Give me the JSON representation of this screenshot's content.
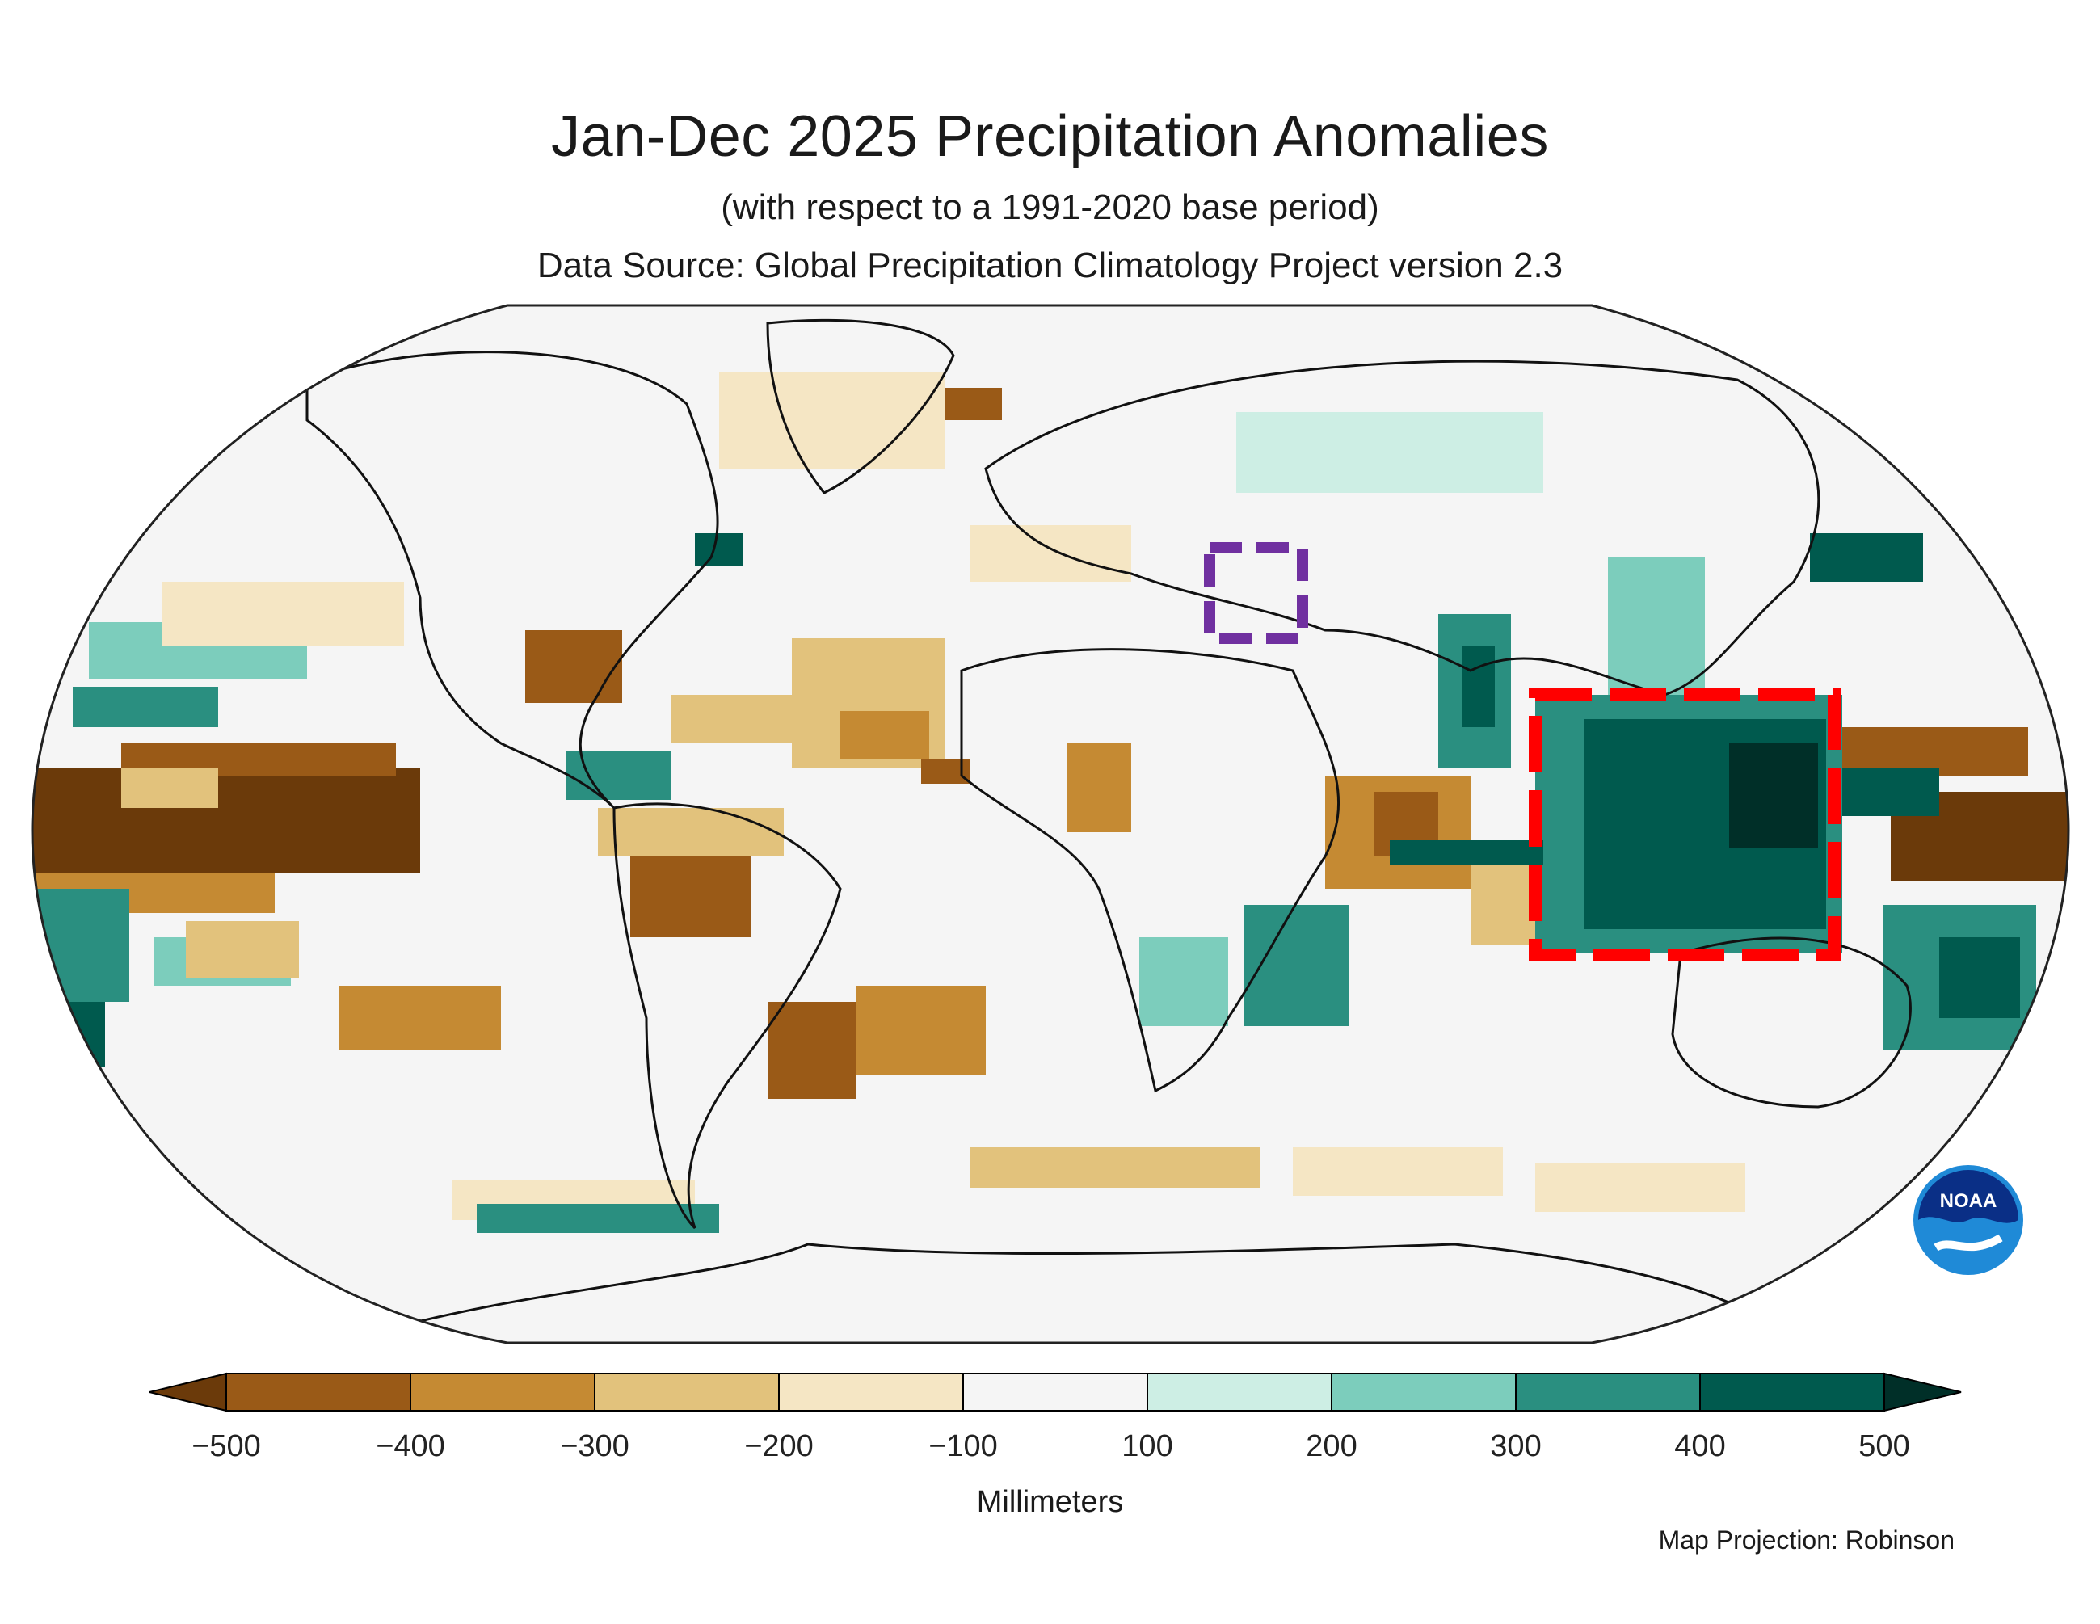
{
  "title": "Jan-Dec 2025 Precipitation Anomalies",
  "subtitle": "(with respect to a 1991-2020 base period)",
  "source": "Data Source: Global Precipitation Climatology Project version 2.3",
  "colorbar": {
    "unit": "Millimeters",
    "ticks": [
      "−500",
      "−400",
      "−300",
      "−200",
      "−100",
      "100",
      "200",
      "300",
      "400",
      "500"
    ],
    "colors": [
      "#6b3a0a",
      "#9a5a17",
      "#c58a33",
      "#e2c27c",
      "#f5e6c4",
      "#f5f5f5",
      "#cdeee4",
      "#7ccdbc",
      "#2a8f80",
      "#005a4e",
      "#002f28"
    ]
  },
  "projection_note": "Map Projection: Robinson",
  "logo": {
    "text": "NOAA",
    "name": "noaa-logo"
  },
  "highlight_boxes": [
    {
      "name": "purple-dashed-box",
      "color": "#7030a0"
    },
    {
      "name": "red-dashed-box",
      "color": "#ff0000"
    }
  ]
}
